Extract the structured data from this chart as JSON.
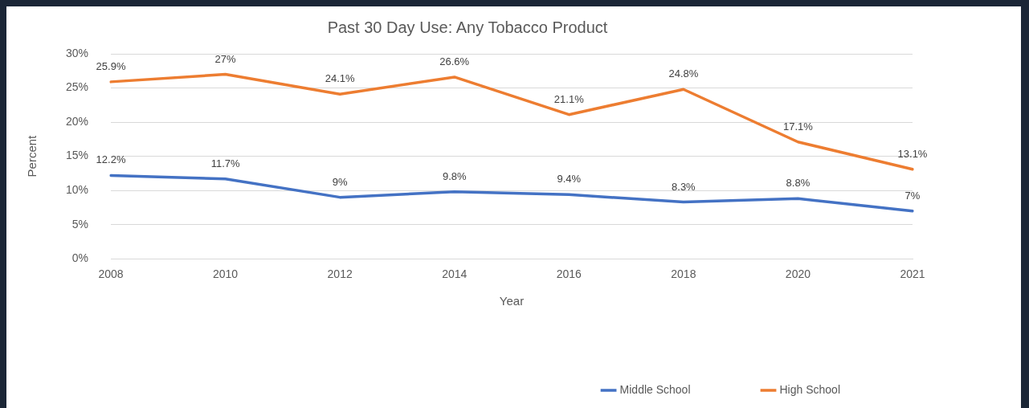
{
  "chart_data": {
    "type": "line",
    "title": "Past 30 Day Use: Any Tobacco Product",
    "xlabel": "Year",
    "ylabel": "Percent",
    "categories": [
      "2008",
      "2010",
      "2012",
      "2014",
      "2016",
      "2018",
      "2020",
      "2021"
    ],
    "series": [
      {
        "name": "Middle School",
        "color": "#4472c4",
        "values": [
          12.2,
          11.7,
          9,
          9.8,
          9.4,
          8.3,
          8.8,
          7
        ],
        "value_labels": [
          "12.2%",
          "11.7%",
          "9%",
          "9.8%",
          "9.4%",
          "8.3%",
          "8.8%",
          "7%"
        ]
      },
      {
        "name": "High School",
        "color": "#ed7d31",
        "values": [
          25.9,
          27,
          24.1,
          26.6,
          21.1,
          24.8,
          17.1,
          13.1
        ],
        "value_labels": [
          "25.9%",
          "27%",
          "24.1%",
          "26.6%",
          "21.1%",
          "24.8%",
          "17.1%",
          "13.1%"
        ]
      }
    ],
    "ylim": [
      0,
      30
    ],
    "yticks": [
      {
        "value": 0,
        "label": "0%"
      },
      {
        "value": 5,
        "label": "5%"
      },
      {
        "value": 10,
        "label": "10%"
      },
      {
        "value": 15,
        "label": "15%"
      },
      {
        "value": 20,
        "label": "20%"
      },
      {
        "value": 25,
        "label": "25%"
      },
      {
        "value": 30,
        "label": "30%"
      }
    ],
    "grid": "y",
    "legend": "bottom right",
    "marker": "none",
    "line_style": "solid"
  }
}
